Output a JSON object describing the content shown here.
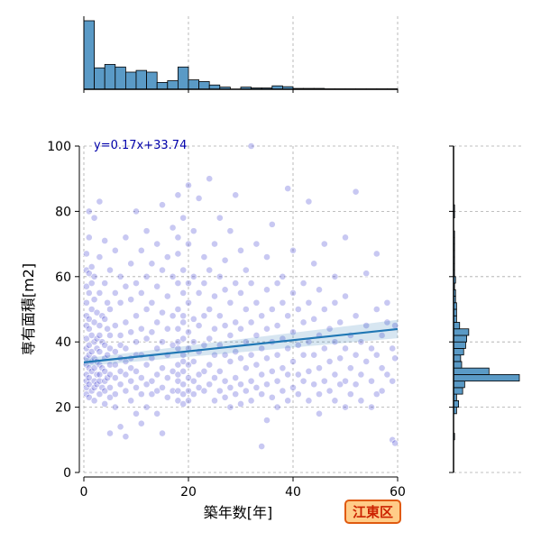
{
  "chart_data": {
    "type": "scatter",
    "xlabel": "築年数[年]",
    "ylabel": "専有面積[m2]",
    "xlim": [
      0,
      60
    ],
    "ylim": [
      0,
      100
    ],
    "xticks": [
      0,
      20,
      40,
      60
    ],
    "yticks": [
      0,
      20,
      40,
      60,
      80,
      100
    ],
    "grid": true,
    "annotation": "y=0.17x+33.74",
    "badge": "江東区",
    "regression": {
      "slope": 0.17,
      "intercept": 33.74,
      "ci_halfwidth": [
        1.2,
        2.8
      ]
    },
    "colors": {
      "points": "#3a3ad0",
      "regression": "#1f77b4",
      "hist_fill": "#5a9ac6",
      "badge_fill": "#ffcc88",
      "badge_border": "#e05a10",
      "badge_text": "#cc2200"
    },
    "x_hist": {
      "bin_width": 2,
      "counts": [
        160,
        50,
        58,
        52,
        40,
        44,
        40,
        16,
        20,
        52,
        22,
        18,
        10,
        5,
        0,
        5,
        3,
        3,
        8,
        6,
        2,
        2,
        2,
        1,
        1,
        1,
        1,
        1,
        1,
        1
      ]
    },
    "y_hist": {
      "bin_width": 2,
      "counts": [
        0,
        0,
        0,
        0,
        0,
        1,
        0,
        0,
        0,
        3,
        5,
        3,
        9,
        11,
        65,
        35,
        8,
        7,
        10,
        12,
        13,
        15,
        6,
        3,
        3,
        3,
        2,
        2,
        1,
        2,
        1,
        1,
        1,
        1,
        1,
        1,
        1,
        0,
        0,
        1,
        1,
        0,
        0,
        0,
        0,
        0,
        0,
        0,
        0,
        0
      ]
    },
    "points": [
      [
        0.5,
        62
      ],
      [
        0.5,
        52
      ],
      [
        0.5,
        45
      ],
      [
        0.5,
        38
      ],
      [
        0.5,
        33
      ],
      [
        0.5,
        28
      ],
      [
        0.5,
        24
      ],
      [
        0.5,
        57
      ],
      [
        0.5,
        41
      ],
      [
        0.5,
        35
      ],
      [
        0.5,
        26
      ],
      [
        0.5,
        48
      ],
      [
        0.5,
        67
      ],
      [
        0.5,
        30
      ],
      [
        1,
        80
      ],
      [
        1,
        61
      ],
      [
        1,
        44
      ],
      [
        1,
        36
      ],
      [
        1,
        29
      ],
      [
        1,
        23
      ],
      [
        1,
        39
      ],
      [
        1,
        55
      ],
      [
        1,
        47
      ],
      [
        1,
        32
      ],
      [
        1,
        27
      ],
      [
        1,
        72
      ],
      [
        1.5,
        63
      ],
      [
        1.5,
        50
      ],
      [
        1.5,
        42
      ],
      [
        1.5,
        34
      ],
      [
        1.5,
        25
      ],
      [
        1.5,
        31
      ],
      [
        1.5,
        58
      ],
      [
        1.5,
        37
      ],
      [
        2,
        53
      ],
      [
        2,
        46
      ],
      [
        2,
        40
      ],
      [
        2,
        32
      ],
      [
        2,
        26
      ],
      [
        2,
        22
      ],
      [
        2,
        35
      ],
      [
        2,
        60
      ],
      [
        2,
        28
      ],
      [
        2,
        78
      ],
      [
        2.5,
        41
      ],
      [
        2.5,
        34
      ],
      [
        2.5,
        27
      ],
      [
        2.5,
        49
      ],
      [
        2.5,
        38
      ],
      [
        2.5,
        30
      ],
      [
        3,
        55
      ],
      [
        3,
        45
      ],
      [
        3,
        37
      ],
      [
        3,
        30
      ],
      [
        3,
        24
      ],
      [
        3,
        42
      ],
      [
        3,
        33
      ],
      [
        3,
        66
      ],
      [
        3,
        28
      ],
      [
        3,
        83
      ],
      [
        3.5,
        40
      ],
      [
        3.5,
        32
      ],
      [
        3.5,
        26
      ],
      [
        3.5,
        48
      ],
      [
        4,
        58
      ],
      [
        4,
        47
      ],
      [
        4,
        39
      ],
      [
        4,
        31
      ],
      [
        4,
        25
      ],
      [
        4,
        35
      ],
      [
        4,
        28
      ],
      [
        4,
        71
      ],
      [
        4,
        21
      ],
      [
        4.5,
        44
      ],
      [
        4.5,
        36
      ],
      [
        4.5,
        29
      ],
      [
        4.5,
        52
      ],
      [
        5,
        62
      ],
      [
        5,
        50
      ],
      [
        5,
        42
      ],
      [
        5,
        33
      ],
      [
        5,
        26
      ],
      [
        5,
        38
      ],
      [
        5,
        30
      ],
      [
        5,
        23
      ],
      [
        5,
        12
      ],
      [
        6,
        55
      ],
      [
        6,
        45
      ],
      [
        6,
        37
      ],
      [
        6,
        29
      ],
      [
        6,
        24
      ],
      [
        6,
        33
      ],
      [
        6,
        68
      ],
      [
        6,
        20
      ],
      [
        7,
        52
      ],
      [
        7,
        42
      ],
      [
        7,
        35
      ],
      [
        7,
        27
      ],
      [
        7,
        31
      ],
      [
        7,
        39
      ],
      [
        7,
        60
      ],
      [
        7,
        14
      ],
      [
        8,
        57
      ],
      [
        8,
        46
      ],
      [
        8,
        38
      ],
      [
        8,
        30
      ],
      [
        8,
        25
      ],
      [
        8,
        34
      ],
      [
        8,
        72
      ],
      [
        8,
        11
      ],
      [
        9,
        53
      ],
      [
        9,
        43
      ],
      [
        9,
        35
      ],
      [
        9,
        28
      ],
      [
        9,
        32
      ],
      [
        9,
        64
      ],
      [
        9,
        22
      ],
      [
        10,
        58
      ],
      [
        10,
        48
      ],
      [
        10,
        40
      ],
      [
        10,
        31
      ],
      [
        10,
        26
      ],
      [
        10,
        36
      ],
      [
        10,
        80
      ],
      [
        10,
        18
      ],
      [
        11,
        55
      ],
      [
        11,
        44
      ],
      [
        11,
        36
      ],
      [
        11,
        29
      ],
      [
        11,
        24
      ],
      [
        11,
        68
      ],
      [
        11,
        15
      ],
      [
        12,
        60
      ],
      [
        12,
        50
      ],
      [
        12,
        41
      ],
      [
        12,
        33
      ],
      [
        12,
        27
      ],
      [
        12,
        74
      ],
      [
        12,
        20
      ],
      [
        13,
        52
      ],
      [
        13,
        43
      ],
      [
        13,
        35
      ],
      [
        13,
        28
      ],
      [
        13,
        64
      ],
      [
        13,
        24
      ],
      [
        14,
        57
      ],
      [
        14,
        46
      ],
      [
        14,
        38
      ],
      [
        14,
        30
      ],
      [
        14,
        25
      ],
      [
        14,
        70
      ],
      [
        14,
        18
      ],
      [
        15,
        62
      ],
      [
        15,
        49
      ],
      [
        15,
        40
      ],
      [
        15,
        32
      ],
      [
        15,
        26
      ],
      [
        15,
        82
      ],
      [
        15,
        12
      ],
      [
        16,
        54
      ],
      [
        16,
        44
      ],
      [
        16,
        36
      ],
      [
        16,
        29
      ],
      [
        16,
        66
      ],
      [
        16,
        23
      ],
      [
        17,
        60
      ],
      [
        17,
        48
      ],
      [
        17,
        39
      ],
      [
        17,
        31
      ],
      [
        17,
        75
      ],
      [
        17,
        25
      ],
      [
        18,
        58
      ],
      [
        18,
        50
      ],
      [
        18,
        44
      ],
      [
        18,
        38
      ],
      [
        18,
        33
      ],
      [
        18,
        28
      ],
      [
        18,
        25
      ],
      [
        18,
        22
      ],
      [
        18,
        67
      ],
      [
        18,
        85
      ],
      [
        18,
        72
      ],
      [
        18,
        40
      ],
      [
        18,
        30
      ],
      [
        19,
        55
      ],
      [
        19,
        46
      ],
      [
        19,
        41
      ],
      [
        19,
        36
      ],
      [
        19,
        31
      ],
      [
        19,
        27
      ],
      [
        19,
        24
      ],
      [
        19,
        21
      ],
      [
        19,
        62
      ],
      [
        19,
        78
      ],
      [
        19,
        48
      ],
      [
        19,
        34
      ],
      [
        20,
        52
      ],
      [
        20,
        43
      ],
      [
        20,
        38
      ],
      [
        20,
        33
      ],
      [
        20,
        29
      ],
      [
        20,
        25
      ],
      [
        20,
        22
      ],
      [
        20,
        70
      ],
      [
        20,
        58
      ],
      [
        20,
        88
      ],
      [
        21,
        60
      ],
      [
        21,
        47
      ],
      [
        21,
        40
      ],
      [
        21,
        34
      ],
      [
        21,
        28
      ],
      [
        21,
        24
      ],
      [
        21,
        74
      ],
      [
        22,
        55
      ],
      [
        22,
        45
      ],
      [
        22,
        37
      ],
      [
        22,
        30
      ],
      [
        22,
        26
      ],
      [
        22,
        84
      ],
      [
        23,
        58
      ],
      [
        23,
        48
      ],
      [
        23,
        39
      ],
      [
        23,
        31
      ],
      [
        23,
        25
      ],
      [
        23,
        66
      ],
      [
        24,
        62
      ],
      [
        24,
        50
      ],
      [
        24,
        41
      ],
      [
        24,
        33
      ],
      [
        24,
        27
      ],
      [
        24,
        90
      ],
      [
        25,
        54
      ],
      [
        25,
        44
      ],
      [
        25,
        36
      ],
      [
        25,
        29
      ],
      [
        25,
        22
      ],
      [
        25,
        70
      ],
      [
        26,
        60
      ],
      [
        26,
        48
      ],
      [
        26,
        39
      ],
      [
        26,
        31
      ],
      [
        26,
        25
      ],
      [
        26,
        78
      ],
      [
        27,
        56
      ],
      [
        27,
        45
      ],
      [
        27,
        36
      ],
      [
        27,
        28
      ],
      [
        27,
        23
      ],
      [
        27,
        65
      ],
      [
        28,
        52
      ],
      [
        28,
        42
      ],
      [
        28,
        34
      ],
      [
        28,
        26
      ],
      [
        28,
        20
      ],
      [
        28,
        74
      ],
      [
        29,
        58
      ],
      [
        29,
        46
      ],
      [
        29,
        37
      ],
      [
        29,
        29
      ],
      [
        29,
        24
      ],
      [
        29,
        85
      ],
      [
        30,
        55
      ],
      [
        30,
        44
      ],
      [
        30,
        35
      ],
      [
        30,
        27
      ],
      [
        30,
        21
      ],
      [
        30,
        68
      ],
      [
        31,
        50
      ],
      [
        31,
        40
      ],
      [
        31,
        32
      ],
      [
        31,
        25
      ],
      [
        31,
        62
      ],
      [
        32,
        58
      ],
      [
        32,
        46
      ],
      [
        32,
        36
      ],
      [
        32,
        28
      ],
      [
        32,
        22
      ],
      [
        32,
        100
      ],
      [
        33,
        52
      ],
      [
        33,
        42
      ],
      [
        33,
        33
      ],
      [
        33,
        26
      ],
      [
        33,
        70
      ],
      [
        34,
        48
      ],
      [
        34,
        38
      ],
      [
        34,
        30
      ],
      [
        34,
        24
      ],
      [
        34,
        8
      ],
      [
        35,
        56
      ],
      [
        35,
        44
      ],
      [
        35,
        35
      ],
      [
        35,
        27
      ],
      [
        35,
        66
      ],
      [
        35,
        16
      ],
      [
        36,
        50
      ],
      [
        36,
        40
      ],
      [
        36,
        31
      ],
      [
        36,
        23
      ],
      [
        36,
        76
      ],
      [
        37,
        58
      ],
      [
        37,
        45
      ],
      [
        37,
        36
      ],
      [
        37,
        28
      ],
      [
        37,
        20
      ],
      [
        38,
        52
      ],
      [
        38,
        41
      ],
      [
        38,
        32
      ],
      [
        38,
        25
      ],
      [
        38,
        60
      ],
      [
        39,
        48
      ],
      [
        39,
        38
      ],
      [
        39,
        30
      ],
      [
        39,
        22
      ],
      [
        39,
        87
      ],
      [
        40,
        55
      ],
      [
        40,
        43
      ],
      [
        40,
        34
      ],
      [
        40,
        26
      ],
      [
        40,
        68
      ],
      [
        41,
        50
      ],
      [
        41,
        39
      ],
      [
        41,
        30
      ],
      [
        41,
        24
      ],
      [
        42,
        46
      ],
      [
        42,
        36
      ],
      [
        42,
        28
      ],
      [
        42,
        58
      ],
      [
        43,
        52
      ],
      [
        43,
        40
      ],
      [
        43,
        31
      ],
      [
        43,
        22
      ],
      [
        43,
        83
      ],
      [
        44,
        47
      ],
      [
        44,
        36
      ],
      [
        44,
        27
      ],
      [
        44,
        64
      ],
      [
        45,
        56
      ],
      [
        45,
        42
      ],
      [
        45,
        32
      ],
      [
        45,
        24
      ],
      [
        45,
        18
      ],
      [
        46,
        50
      ],
      [
        46,
        38
      ],
      [
        46,
        28
      ],
      [
        46,
        70
      ],
      [
        47,
        44
      ],
      [
        47,
        34
      ],
      [
        47,
        25
      ],
      [
        48,
        52
      ],
      [
        48,
        40
      ],
      [
        48,
        30
      ],
      [
        48,
        22
      ],
      [
        48,
        60
      ],
      [
        49,
        46
      ],
      [
        49,
        35
      ],
      [
        49,
        27
      ],
      [
        50,
        54
      ],
      [
        50,
        38
      ],
      [
        50,
        28
      ],
      [
        50,
        20
      ],
      [
        50,
        72
      ],
      [
        51,
        42
      ],
      [
        51,
        32
      ],
      [
        51,
        24
      ],
      [
        52,
        48
      ],
      [
        52,
        36
      ],
      [
        52,
        27
      ],
      [
        52,
        86
      ],
      [
        53,
        40
      ],
      [
        53,
        30
      ],
      [
        53,
        22
      ],
      [
        54,
        45
      ],
      [
        54,
        34
      ],
      [
        54,
        61
      ],
      [
        55,
        38
      ],
      [
        55,
        28
      ],
      [
        55,
        20
      ],
      [
        56,
        50
      ],
      [
        56,
        36
      ],
      [
        56,
        24
      ],
      [
        56,
        67
      ],
      [
        57,
        42
      ],
      [
        57,
        32
      ],
      [
        57,
        25
      ],
      [
        58,
        46
      ],
      [
        58,
        30
      ],
      [
        58,
        52
      ],
      [
        59,
        38
      ],
      [
        59,
        28
      ],
      [
        59,
        10
      ],
      [
        59.5,
        45
      ],
      [
        59.5,
        35
      ],
      [
        59.5,
        9
      ]
    ]
  }
}
